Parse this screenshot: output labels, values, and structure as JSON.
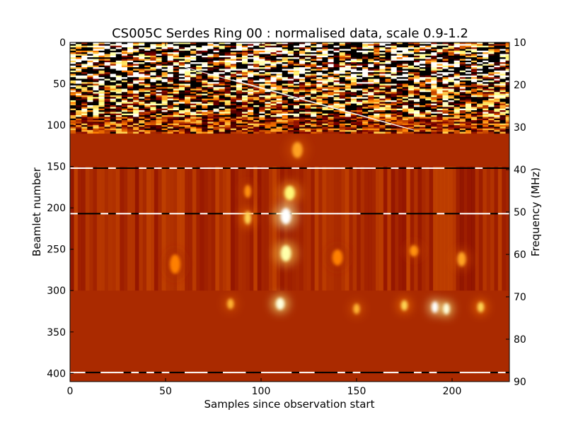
{
  "chart_data": {
    "type": "heatmap",
    "title": "CS005C Serdes Ring 00 : normalised data, scale 0.9-1.2",
    "xlabel": "Samples since observation start",
    "ylabel": "Beamlet number",
    "y2label": "Frequency (MHz)",
    "xlim": [
      0,
      230
    ],
    "ylim": [
      410,
      0
    ],
    "y2lim": [
      90,
      10
    ],
    "x_ticks": [
      0,
      50,
      100,
      150,
      200
    ],
    "x_tick_labels": [
      "0",
      "50",
      "100",
      "150",
      "200"
    ],
    "y_ticks": [
      0,
      50,
      100,
      150,
      200,
      250,
      300,
      350,
      400
    ],
    "y_tick_labels": [
      "0",
      "50",
      "100",
      "150",
      "200",
      "250",
      "300",
      "350",
      "400"
    ],
    "y2_ticks": [
      10,
      20,
      30,
      40,
      50,
      60,
      70,
      80,
      90
    ],
    "y2_tick_labels": [
      "10",
      "20",
      "30",
      "40",
      "50",
      "60",
      "70",
      "80",
      "90"
    ],
    "color_scale": {
      "min": 0.9,
      "max": 1.2,
      "colormap": "afmhot",
      "low_color": "#000000",
      "mid_color": "#b34a00",
      "high_color": "#ffffff"
    },
    "background_value": 1.0,
    "noisy_band": {
      "beamlet_start": 0,
      "beamlet_end": 110
    },
    "rfi_lines_beamlet": [
      152,
      207,
      399
    ],
    "features": [
      {
        "sample": 113,
        "beamlet": 210,
        "value": 1.2,
        "width": 4,
        "height": 16
      },
      {
        "sample": 113,
        "beamlet": 255,
        "value": 1.15,
        "width": 4,
        "height": 16
      },
      {
        "sample": 115,
        "beamlet": 182,
        "value": 1.12,
        "width": 4,
        "height": 14
      },
      {
        "sample": 110,
        "beamlet": 316,
        "value": 1.18,
        "width": 3,
        "height": 11
      },
      {
        "sample": 191,
        "beamlet": 320,
        "value": 1.2,
        "width": 2,
        "height": 10
      },
      {
        "sample": 197,
        "beamlet": 322,
        "value": 1.18,
        "width": 2,
        "height": 10
      },
      {
        "sample": 93,
        "beamlet": 212,
        "value": 1.1,
        "width": 2,
        "height": 12
      },
      {
        "sample": 93,
        "beamlet": 180,
        "value": 1.06,
        "width": 2,
        "height": 12
      },
      {
        "sample": 119,
        "beamlet": 130,
        "value": 1.07,
        "width": 4,
        "height": 16
      },
      {
        "sample": 84,
        "beamlet": 316,
        "value": 1.08,
        "width": 2,
        "height": 9
      },
      {
        "sample": 150,
        "beamlet": 322,
        "value": 1.08,
        "width": 2,
        "height": 9
      },
      {
        "sample": 175,
        "beamlet": 318,
        "value": 1.1,
        "width": 2,
        "height": 9
      },
      {
        "sample": 215,
        "beamlet": 320,
        "value": 1.1,
        "width": 2,
        "height": 9
      },
      {
        "sample": 55,
        "beamlet": 268,
        "value": 1.05,
        "width": 4,
        "height": 20
      },
      {
        "sample": 140,
        "beamlet": 260,
        "value": 1.05,
        "width": 4,
        "height": 16
      },
      {
        "sample": 205,
        "beamlet": 262,
        "value": 1.07,
        "width": 3,
        "height": 14
      },
      {
        "sample": 180,
        "beamlet": 252,
        "value": 1.06,
        "width": 3,
        "height": 10
      }
    ]
  }
}
